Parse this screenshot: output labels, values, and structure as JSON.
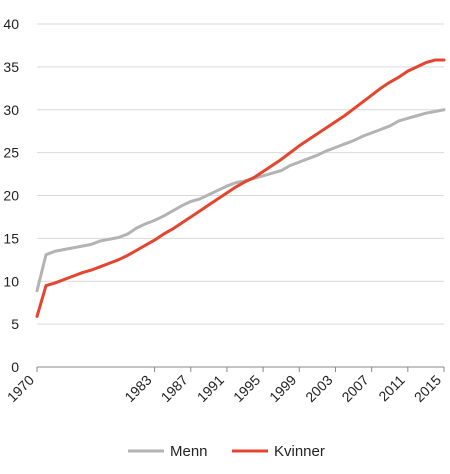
{
  "chart_data": {
    "type": "line",
    "x": [
      1970,
      1971,
      1972,
      1973,
      1974,
      1975,
      1976,
      1977,
      1978,
      1979,
      1980,
      1981,
      1982,
      1983,
      1984,
      1985,
      1986,
      1987,
      1988,
      1989,
      1990,
      1991,
      1992,
      1993,
      1994,
      1995,
      1996,
      1997,
      1998,
      1999,
      2000,
      2001,
      2002,
      2003,
      2004,
      2005,
      2006,
      2007,
      2008,
      2009,
      2010,
      2011,
      2012,
      2013,
      2014,
      2015
    ],
    "x_tick_labels": [
      "1970",
      "1983",
      "1987",
      "1991",
      "1995",
      "1999",
      "2003",
      "2007",
      "2011",
      "2015"
    ],
    "x_tick_values": [
      1970,
      1983,
      1987,
      1991,
      1995,
      1999,
      2003,
      2007,
      2011,
      2015
    ],
    "y_ticks": [
      0,
      5,
      10,
      15,
      20,
      25,
      30,
      35,
      40
    ],
    "ylim": [
      0,
      40
    ],
    "grid": true,
    "legend_position": "bottom",
    "series": [
      {
        "name": "Menn",
        "color": "#b3b3b3",
        "values": [
          8.9,
          13.1,
          13.5,
          13.7,
          13.9,
          14.1,
          14.3,
          14.7,
          14.9,
          15.1,
          15.5,
          16.2,
          16.7,
          17.1,
          17.6,
          18.2,
          18.8,
          19.3,
          19.6,
          20.1,
          20.6,
          21.1,
          21.5,
          21.7,
          22.0,
          22.3,
          22.6,
          22.9,
          23.5,
          23.9,
          24.3,
          24.7,
          25.2,
          25.6,
          26.0,
          26.4,
          26.9,
          27.3,
          27.7,
          28.1,
          28.7,
          29.0,
          29.3,
          29.6,
          29.8,
          30.0
        ]
      },
      {
        "name": "Kvinner",
        "color": "#e4452e",
        "values": [
          5.9,
          9.5,
          9.8,
          10.2,
          10.6,
          11.0,
          11.3,
          11.7,
          12.1,
          12.5,
          13.0,
          13.6,
          14.2,
          14.8,
          15.5,
          16.1,
          16.8,
          17.5,
          18.2,
          18.9,
          19.6,
          20.3,
          21.0,
          21.6,
          22.1,
          22.8,
          23.5,
          24.2,
          25.0,
          25.8,
          26.5,
          27.2,
          27.9,
          28.6,
          29.3,
          30.1,
          30.9,
          31.7,
          32.5,
          33.2,
          33.8,
          34.5,
          35.0,
          35.5,
          35.8,
          35.8
        ]
      }
    ]
  }
}
